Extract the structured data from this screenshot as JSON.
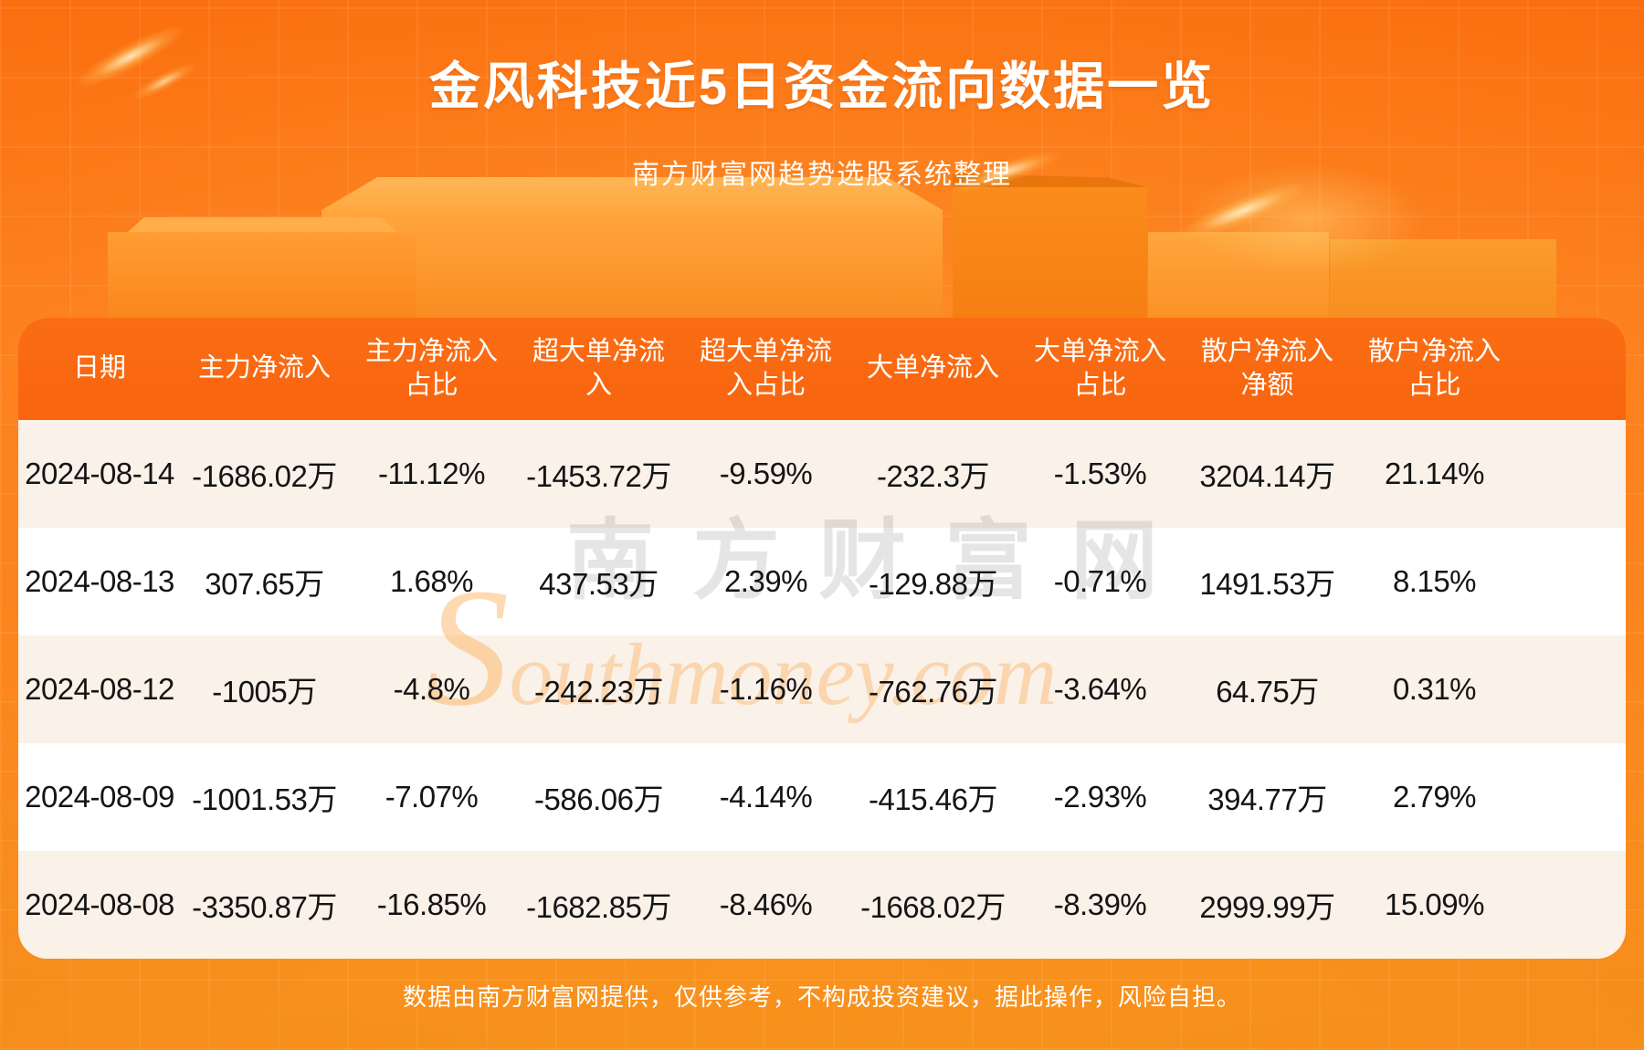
{
  "page": {
    "title": "金风科技近5日资金流向数据一览",
    "subtitle": "南方财富网趋势选股系统整理",
    "disclaimer": "数据由南方财富网提供，仅供参考，不构成投资建议，据此操作，风险自担。"
  },
  "watermark": {
    "cn": "南方财富网",
    "en": "Southmoney.com"
  },
  "colors": {
    "page_orange_top": "#fb6f10",
    "page_orange_bottom": "#f8951d",
    "header_row_orange": "#f9670f",
    "row_cream": "#faf1e8",
    "row_white": "#ffffff",
    "text_dark": "#141414",
    "text_white": "#ffffff",
    "podium_light_orange": "#ffa63d"
  },
  "table": {
    "columns": [
      {
        "label": "日期"
      },
      {
        "label": "主力净流入"
      },
      {
        "label": "主力净流入\n占比"
      },
      {
        "label": "超大单净流\n入"
      },
      {
        "label": "超大单净流\n入占比"
      },
      {
        "label": "大单净流入"
      },
      {
        "label": "大单净流入\n占比"
      },
      {
        "label": "散户净流入\n净额"
      },
      {
        "label": "散户净流入\n占比"
      }
    ],
    "rows": [
      [
        "2024-08-14",
        "-1686.02万",
        "-11.12%",
        "-1453.72万",
        "-9.59%",
        "-232.3万",
        "-1.53%",
        "3204.14万",
        "21.14%"
      ],
      [
        "2024-08-13",
        "307.65万",
        "1.68%",
        "437.53万",
        "2.39%",
        "-129.88万",
        "-0.71%",
        "1491.53万",
        "8.15%"
      ],
      [
        "2024-08-12",
        "-1005万",
        "-4.8%",
        "-242.23万",
        "-1.16%",
        "-762.76万",
        "-3.64%",
        "64.75万",
        "0.31%"
      ],
      [
        "2024-08-09",
        "-1001.53万",
        "-7.07%",
        "-586.06万",
        "-4.14%",
        "-415.46万",
        "-2.93%",
        "394.77万",
        "2.79%"
      ],
      [
        "2024-08-08",
        "-3350.87万",
        "-16.85%",
        "-1682.85万",
        "-8.46%",
        "-1668.02万",
        "-8.39%",
        "2999.99万",
        "15.09%"
      ]
    ]
  },
  "chart_data": {
    "type": "table",
    "title": "金风科技近5日资金流向数据一览",
    "subtitle": "南方财富网趋势选股系统整理",
    "columns": [
      "日期",
      "主力净流入",
      "主力净流入占比",
      "超大单净流入",
      "超大单净流入占比",
      "大单净流入",
      "大单净流入占比",
      "散户净流入净额",
      "散户净流入占比"
    ],
    "rows": [
      [
        "2024-08-14",
        "-1686.02万",
        "-11.12%",
        "-1453.72万",
        "-9.59%",
        "-232.3万",
        "-1.53%",
        "3204.14万",
        "21.14%"
      ],
      [
        "2024-08-13",
        "307.65万",
        "1.68%",
        "437.53万",
        "2.39%",
        "-129.88万",
        "-0.71%",
        "1491.53万",
        "8.15%"
      ],
      [
        "2024-08-12",
        "-1005万",
        "-4.8%",
        "-242.23万",
        "-1.16%",
        "-762.76万",
        "-3.64%",
        "64.75万",
        "0.31%"
      ],
      [
        "2024-08-09",
        "-1001.53万",
        "-7.07%",
        "-586.06万",
        "-4.14%",
        "-415.46万",
        "-2.93%",
        "394.77万",
        "2.79%"
      ],
      [
        "2024-08-08",
        "-3350.87万",
        "-16.85%",
        "-1682.85万",
        "-8.46%",
        "-1668.02万",
        "-8.39%",
        "2999.99万",
        "15.09%"
      ]
    ],
    "footnote": "数据由南方财富网提供，仅供参考，不构成投资建议，据此操作，风险自担。"
  }
}
